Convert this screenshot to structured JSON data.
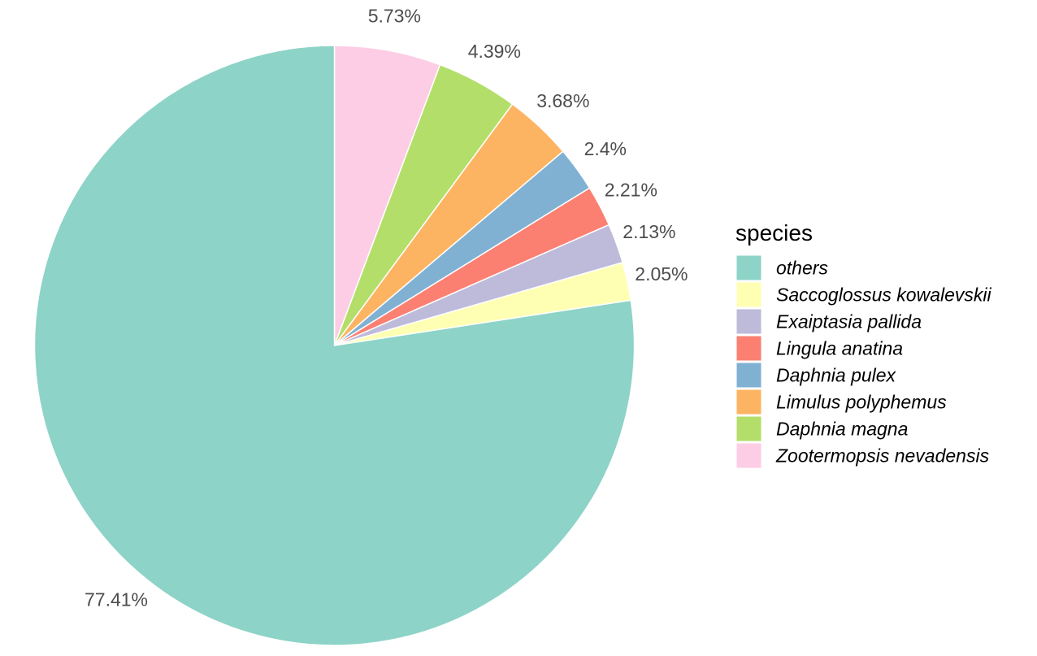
{
  "chart_data": {
    "type": "pie",
    "title": "",
    "start_angle_deg": 0,
    "direction": "clockwise",
    "slices": [
      {
        "label": "Zootermopsis nevadensis",
        "value": 5.73,
        "display": "5.73%",
        "color": "#FCCDE5"
      },
      {
        "label": "Daphnia magna",
        "value": 4.39,
        "display": "4.39%",
        "color": "#B3DE69"
      },
      {
        "label": "Limulus polyphemus",
        "value": 3.68,
        "display": "3.68%",
        "color": "#FDB462"
      },
      {
        "label": "Daphnia pulex",
        "value": 2.4,
        "display": "2.4%",
        "color": "#80B1D3"
      },
      {
        "label": "Lingula anatina",
        "value": 2.21,
        "display": "2.21%",
        "color": "#FB8072"
      },
      {
        "label": "Exaiptasia pallida",
        "value": 2.13,
        "display": "2.13%",
        "color": "#BEBADA"
      },
      {
        "label": "Saccoglossus kowalevskii",
        "value": 2.05,
        "display": "2.05%",
        "color": "#FFFFB3"
      },
      {
        "label": "others",
        "value": 77.41,
        "display": "77.41%",
        "color": "#8DD3C7"
      }
    ],
    "legend": {
      "title": "species",
      "placement": "right",
      "order": [
        "others",
        "Saccoglossus kowalevskii",
        "Exaiptasia pallida",
        "Lingula anatina",
        "Daphnia pulex",
        "Limulus polyphemus",
        "Daphnia magna",
        "Zootermopsis nevadensis"
      ]
    }
  }
}
